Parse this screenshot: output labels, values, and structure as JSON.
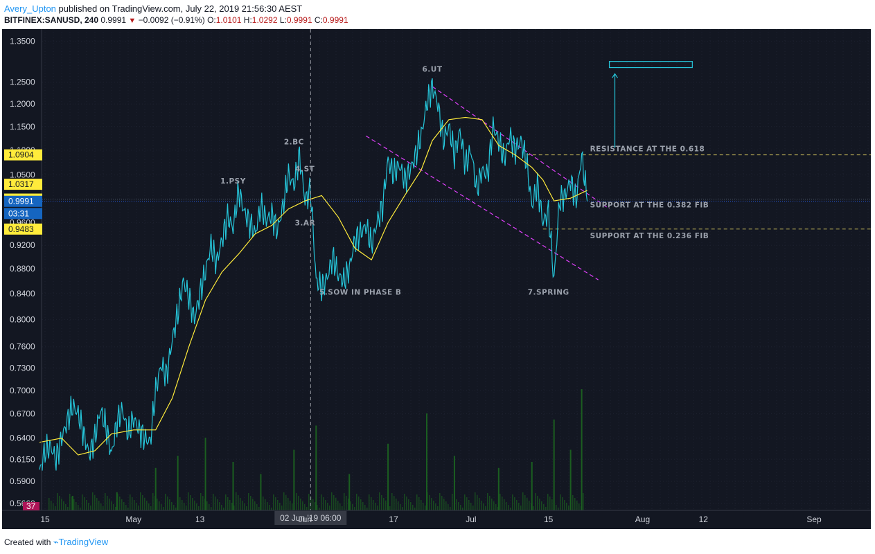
{
  "header": {
    "user": "Avery_Upton",
    "published_text": " published on TradingView.com, July 22, 2019 21:56:30 AEST",
    "symbol": "BITFINEX:SANUSD, 240",
    "last": "0.9991",
    "change": "−0.0092 (−0.91%)",
    "o_label": "O:",
    "o_value": "1.0101",
    "h_label": "H:",
    "h_value": "1.0292",
    "l_label": "L:",
    "l_value": "0.9991",
    "c_label": "C:",
    "c_value": "0.9991"
  },
  "footer": {
    "created_with": "Created with",
    "brand": "TradingView"
  },
  "colors": {
    "background": "#131722",
    "price_line": "#26c6da",
    "moving_average": "#ffeb3b",
    "channel": "#e040fb",
    "fib_lines": "#c8b95a",
    "target_box": "#26c6da",
    "volume": "#1b5e20",
    "tag_yellow": "#ffeb3b",
    "tag_blue": "#1565c0"
  },
  "chart_data": {
    "type": "line",
    "symbol": "BITFINEX:SANUSD",
    "interval": "240",
    "y_scale": "log",
    "ylim": [
      0.566,
      1.36
    ],
    "y_ticks": [
      "1.3500",
      "1.2500",
      "1.2000",
      "1.1500",
      "1.1000",
      "1.0500",
      "1.0000",
      "0.9600",
      "0.9200",
      "0.8800",
      "0.8400",
      "0.8000",
      "0.7600",
      "0.7300",
      "0.7000",
      "0.6700",
      "0.6400",
      "0.6150",
      "0.5900",
      "0.5660"
    ],
    "x_range": [
      "2019-04-14",
      "2019-09-08"
    ],
    "x_ticks": [
      {
        "label": "15",
        "date": "2019-04-15"
      },
      {
        "label": "May",
        "date": "2019-05-01"
      },
      {
        "label": "13",
        "date": "2019-05-13"
      },
      {
        "label": "Jun",
        "date": "2019-06-01"
      },
      {
        "label": "17",
        "date": "2019-06-17"
      },
      {
        "label": "Jul",
        "date": "2019-07-01"
      },
      {
        "label": "15",
        "date": "2019-07-15"
      },
      {
        "label": "Aug",
        "date": "2019-08-01"
      },
      {
        "label": "12",
        "date": "2019-08-12"
      },
      {
        "label": "Sep",
        "date": "2019-09-01"
      }
    ],
    "crosshair": {
      "date": "2019-06-02",
      "label": "02 Jun '19   06:00"
    },
    "grid": true,
    "series": [
      {
        "kind": "price",
        "points": [
          [
            "2019-04-14",
            0.6
          ],
          [
            "2019-04-15",
            0.625
          ],
          [
            "2019-04-16",
            0.63
          ],
          [
            "2019-04-17",
            0.615
          ],
          [
            "2019-04-18",
            0.64
          ],
          [
            "2019-04-19",
            0.66
          ],
          [
            "2019-04-20",
            0.68
          ],
          [
            "2019-04-21",
            0.67
          ],
          [
            "2019-04-22",
            0.645
          ],
          [
            "2019-04-23",
            0.62
          ],
          [
            "2019-04-24",
            0.64
          ],
          [
            "2019-04-25",
            0.675
          ],
          [
            "2019-04-26",
            0.655
          ],
          [
            "2019-04-27",
            0.62
          ],
          [
            "2019-04-28",
            0.66
          ],
          [
            "2019-04-29",
            0.675
          ],
          [
            "2019-04-30",
            0.645
          ],
          [
            "2019-05-01",
            0.665
          ],
          [
            "2019-05-02",
            0.65
          ],
          [
            "2019-05-03",
            0.64
          ],
          [
            "2019-05-04",
            0.635
          ],
          [
            "2019-05-05",
            0.7
          ],
          [
            "2019-05-06",
            0.735
          ],
          [
            "2019-05-07",
            0.72
          ],
          [
            "2019-05-08",
            0.77
          ],
          [
            "2019-05-09",
            0.81
          ],
          [
            "2019-05-10",
            0.86
          ],
          [
            "2019-05-11",
            0.835
          ],
          [
            "2019-05-12",
            0.8
          ],
          [
            "2019-05-13",
            0.84
          ],
          [
            "2019-05-14",
            0.875
          ],
          [
            "2019-05-15",
            0.92
          ],
          [
            "2019-05-16",
            0.89
          ],
          [
            "2019-05-17",
            0.93
          ],
          [
            "2019-05-18",
            0.97
          ],
          [
            "2019-05-19",
            0.95
          ],
          [
            "2019-05-20",
            1.02
          ],
          [
            "2019-05-21",
            0.98
          ],
          [
            "2019-05-22",
            0.96
          ],
          [
            "2019-05-23",
            0.94
          ],
          [
            "2019-05-24",
            0.99
          ],
          [
            "2019-05-25",
            0.965
          ],
          [
            "2019-05-26",
            0.975
          ],
          [
            "2019-05-27",
            0.945
          ],
          [
            "2019-05-28",
            0.99
          ],
          [
            "2019-05-29",
            1.05
          ],
          [
            "2019-05-30",
            1.03
          ],
          [
            "2019-05-31",
            1.09
          ],
          [
            "2019-06-01",
            1.0
          ],
          [
            "2019-06-02",
            1.02
          ],
          [
            "2019-06-03",
            0.86
          ],
          [
            "2019-06-04",
            0.85
          ],
          [
            "2019-06-05",
            0.865
          ],
          [
            "2019-06-06",
            0.9
          ],
          [
            "2019-06-07",
            0.87
          ],
          [
            "2019-06-08",
            0.86
          ],
          [
            "2019-06-09",
            0.88
          ],
          [
            "2019-06-10",
            0.93
          ],
          [
            "2019-06-11",
            0.94
          ],
          [
            "2019-06-12",
            0.955
          ],
          [
            "2019-06-13",
            0.92
          ],
          [
            "2019-06-14",
            0.96
          ],
          [
            "2019-06-15",
            0.99
          ],
          [
            "2019-06-16",
            1.08
          ],
          [
            "2019-06-17",
            1.05
          ],
          [
            "2019-06-18",
            1.07
          ],
          [
            "2019-06-19",
            1.04
          ],
          [
            "2019-06-20",
            1.06
          ],
          [
            "2019-06-21",
            1.09
          ],
          [
            "2019-06-22",
            1.13
          ],
          [
            "2019-06-23",
            1.2
          ],
          [
            "2019-06-24",
            1.24
          ],
          [
            "2019-06-25",
            1.2
          ],
          [
            "2019-06-26",
            1.12
          ],
          [
            "2019-06-27",
            1.15
          ],
          [
            "2019-06-28",
            1.09
          ],
          [
            "2019-06-29",
            1.14
          ],
          [
            "2019-06-30",
            1.07
          ],
          [
            "2019-07-01",
            1.1
          ],
          [
            "2019-07-02",
            1.02
          ],
          [
            "2019-07-03",
            1.06
          ],
          [
            "2019-07-04",
            1.05
          ],
          [
            "2019-07-05",
            1.15
          ],
          [
            "2019-07-06",
            1.12
          ],
          [
            "2019-07-07",
            1.08
          ],
          [
            "2019-07-08",
            1.13
          ],
          [
            "2019-07-09",
            1.1
          ],
          [
            "2019-07-10",
            1.12
          ],
          [
            "2019-07-11",
            1.08
          ],
          [
            "2019-07-12",
            0.99
          ],
          [
            "2019-07-13",
            1.03
          ],
          [
            "2019-07-14",
            0.96
          ],
          [
            "2019-07-15",
            0.98
          ],
          [
            "2019-07-16",
            0.86
          ],
          [
            "2019-07-17",
            1.0
          ],
          [
            "2019-07-18",
            1.01
          ],
          [
            "2019-07-19",
            1.04
          ],
          [
            "2019-07-20",
            1.0
          ],
          [
            "2019-07-21",
            1.09
          ],
          [
            "2019-07-22",
            0.9991
          ]
        ]
      },
      {
        "kind": "moving_average",
        "points": [
          [
            "2019-04-14",
            0.635
          ],
          [
            "2019-04-18",
            0.64
          ],
          [
            "2019-04-21",
            0.62
          ],
          [
            "2019-04-24",
            0.625
          ],
          [
            "2019-04-27",
            0.645
          ],
          [
            "2019-05-01",
            0.65
          ],
          [
            "2019-05-05",
            0.65
          ],
          [
            "2019-05-08",
            0.69
          ],
          [
            "2019-05-11",
            0.76
          ],
          [
            "2019-05-14",
            0.83
          ],
          [
            "2019-05-17",
            0.875
          ],
          [
            "2019-05-20",
            0.905
          ],
          [
            "2019-05-23",
            0.94
          ],
          [
            "2019-05-26",
            0.955
          ],
          [
            "2019-05-29",
            0.985
          ],
          [
            "2019-06-01",
            1.0
          ],
          [
            "2019-06-04",
            1.01
          ],
          [
            "2019-06-07",
            0.97
          ],
          [
            "2019-06-10",
            0.915
          ],
          [
            "2019-06-13",
            0.895
          ],
          [
            "2019-06-16",
            0.96
          ],
          [
            "2019-06-19",
            1.01
          ],
          [
            "2019-06-22",
            1.06
          ],
          [
            "2019-06-24",
            1.12
          ],
          [
            "2019-06-27",
            1.165
          ],
          [
            "2019-06-30",
            1.17
          ],
          [
            "2019-07-03",
            1.165
          ],
          [
            "2019-07-06",
            1.11
          ],
          [
            "2019-07-09",
            1.09
          ],
          [
            "2019-07-12",
            1.065
          ],
          [
            "2019-07-14",
            1.04
          ],
          [
            "2019-07-16",
            1.0
          ],
          [
            "2019-07-19",
            1.005
          ],
          [
            "2019-07-22",
            1.02
          ]
        ]
      }
    ],
    "volume_points": [
      [
        "2019-04-20",
        0.12
      ],
      [
        "2019-04-28",
        0.15
      ],
      [
        "2019-05-05",
        0.35
      ],
      [
        "2019-05-09",
        0.45
      ],
      [
        "2019-05-14",
        0.6
      ],
      [
        "2019-05-19",
        0.4
      ],
      [
        "2019-05-24",
        0.3
      ],
      [
        "2019-05-30",
        0.5
      ],
      [
        "2019-06-03",
        0.7
      ],
      [
        "2019-06-09",
        0.3
      ],
      [
        "2019-06-16",
        0.55
      ],
      [
        "2019-06-23",
        0.8
      ],
      [
        "2019-06-28",
        0.45
      ],
      [
        "2019-07-06",
        0.35
      ],
      [
        "2019-07-12",
        0.4
      ],
      [
        "2019-07-16",
        0.75
      ],
      [
        "2019-07-19",
        0.5
      ],
      [
        "2019-07-21",
        1.0
      ]
    ],
    "horizontal_levels": [
      {
        "kind": "fib",
        "price": 1.0904,
        "from": "2019-07-11",
        "to": "2019-09-08",
        "label": "RESISTANCE AT THE 0.618"
      },
      {
        "kind": "fib",
        "price": 0.9483,
        "from": "2019-07-14",
        "to": "2019-09-08",
        "label": "SUPPORT AT THE 0.236 FIB"
      },
      {
        "kind": "last",
        "price": 0.9991,
        "label": "SUPPORT AT THE 0.382 FIB"
      },
      {
        "kind": "ma",
        "price": 1.0033
      }
    ],
    "channel": [
      {
        "from": [
          "2019-06-24",
          1.24
        ],
        "to": [
          "2019-07-26",
          0.985
        ]
      },
      {
        "from": [
          "2019-06-12",
          1.13
        ],
        "to": [
          "2019-07-24",
          0.862
        ]
      }
    ],
    "target": {
      "box_from": [
        "2019-07-26",
        1.3
      ],
      "box_to": [
        "2019-08-10",
        1.285
      ],
      "arrow_date": "2019-07-27",
      "arrow_from": 1.105,
      "arrow_to": 1.27
    },
    "annotations": [
      {
        "text": "1.PSY",
        "date": "2019-05-19",
        "price": 1.033
      },
      {
        "text": "2.BC",
        "date": "2019-05-30",
        "price": 1.112
      },
      {
        "text": "4.ST",
        "date": "2019-06-01",
        "price": 1.057
      },
      {
        "text": "3.AR",
        "date": "2019-06-01",
        "price": 0.955
      },
      {
        "text": "5.SOW IN PHASE B",
        "date": "2019-06-11",
        "price": 0.838
      },
      {
        "text": "6.UT",
        "date": "2019-06-24",
        "price": 1.275
      },
      {
        "text": "7.SPRING",
        "date": "2019-07-15",
        "price": 0.838
      }
    ],
    "price_tags": [
      {
        "price": 1.0904,
        "label": "1.0904",
        "style": "yellow"
      },
      {
        "price": 1.0317,
        "label": "1.0317",
        "style": "yellow"
      },
      {
        "price": 1.0033,
        "label": "1.0033",
        "style": "yellow"
      },
      {
        "price": 0.9991,
        "label": "0.9991",
        "style": "blue"
      },
      {
        "price": 0.9765,
        "label": "03:31",
        "style": "blue"
      },
      {
        "price": 0.9483,
        "label": "0.9483",
        "style": "yellow"
      }
    ],
    "volume_tag": "37"
  }
}
